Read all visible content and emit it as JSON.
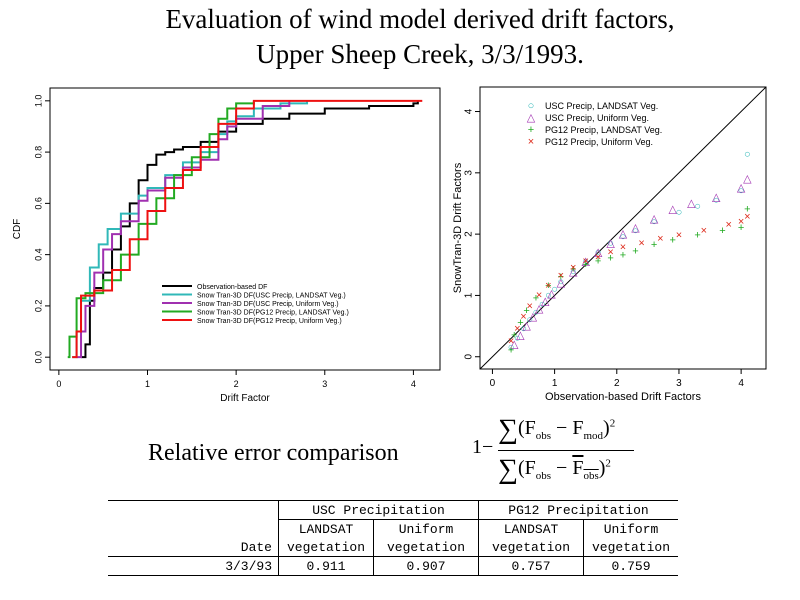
{
  "title": {
    "line1": "Evaluation of wind model derived drift factors,",
    "line2": "Upper Sheep Creek, 3/3/1993."
  },
  "chart_data": [
    {
      "type": "line",
      "xlabel": "Drift Factor",
      "ylabel": "CDF",
      "xlim": [
        -0.1,
        4.3
      ],
      "ylim": [
        -0.05,
        1.05
      ],
      "xticks": [
        "0",
        "1",
        "2",
        "3",
        "4"
      ],
      "yticks": [
        "0.0",
        "0.2",
        "0.4",
        "0.6",
        "0.8",
        "1.0"
      ],
      "legend_position": "bottom-right",
      "series": [
        {
          "name": "Observation-based DF",
          "color": "#000000",
          "points": [
            [
              0.25,
              0
            ],
            [
              0.3,
              0.05
            ],
            [
              0.35,
              0.22
            ],
            [
              0.4,
              0.27
            ],
            [
              0.5,
              0.33
            ],
            [
              0.6,
              0.42
            ],
            [
              0.7,
              0.51
            ],
            [
              0.8,
              0.6
            ],
            [
              0.9,
              0.69
            ],
            [
              1.0,
              0.75
            ],
            [
              1.1,
              0.79
            ],
            [
              1.2,
              0.8
            ],
            [
              1.3,
              0.81
            ],
            [
              1.4,
              0.82
            ],
            [
              1.5,
              0.82
            ],
            [
              1.6,
              0.84
            ],
            [
              1.8,
              0.88
            ],
            [
              2.0,
              0.91
            ],
            [
              2.3,
              0.93
            ],
            [
              2.6,
              0.95
            ],
            [
              3.0,
              0.97
            ],
            [
              3.5,
              0.98
            ],
            [
              4.0,
              0.99
            ],
            [
              4.05,
              1.0
            ]
          ]
        },
        {
          "name": "Snow Tran-3D DF(USC Precip, LANDSAT Veg.)",
          "color": "#30b8b8",
          "points": [
            [
              0.15,
              0
            ],
            [
              0.2,
              0.1
            ],
            [
              0.25,
              0.22
            ],
            [
              0.35,
              0.35
            ],
            [
              0.45,
              0.44
            ],
            [
              0.55,
              0.5
            ],
            [
              0.7,
              0.56
            ],
            [
              0.9,
              0.63
            ],
            [
              1.0,
              0.66
            ],
            [
              1.2,
              0.71
            ],
            [
              1.4,
              0.76
            ],
            [
              1.6,
              0.8
            ],
            [
              1.8,
              0.87
            ],
            [
              1.9,
              0.92
            ],
            [
              2.0,
              0.94
            ],
            [
              2.2,
              0.97
            ],
            [
              2.5,
              0.99
            ],
            [
              2.8,
              1.0
            ]
          ]
        },
        {
          "name": "Snow Tran-3D DF(USC Precip, Uniform Veg.)",
          "color": "#a030b0",
          "points": [
            [
              0.2,
              0
            ],
            [
              0.25,
              0.1
            ],
            [
              0.3,
              0.2
            ],
            [
              0.4,
              0.33
            ],
            [
              0.5,
              0.42
            ],
            [
              0.6,
              0.48
            ],
            [
              0.7,
              0.53
            ],
            [
              0.9,
              0.61
            ],
            [
              1.0,
              0.65
            ],
            [
              1.2,
              0.7
            ],
            [
              1.4,
              0.74
            ],
            [
              1.6,
              0.77
            ],
            [
              1.8,
              0.85
            ],
            [
              1.9,
              0.9
            ],
            [
              2.0,
              0.93
            ],
            [
              2.3,
              0.98
            ],
            [
              2.6,
              1.0
            ]
          ]
        },
        {
          "name": "Snow Tran-3D DF(PG12 Precip, LANDSAT Veg.)",
          "color": "#22aa22",
          "points": [
            [
              0.1,
              0
            ],
            [
              0.12,
              0.08
            ],
            [
              0.2,
              0.23
            ],
            [
              0.3,
              0.25
            ],
            [
              0.5,
              0.3
            ],
            [
              0.7,
              0.4
            ],
            [
              0.9,
              0.52
            ],
            [
              1.1,
              0.62
            ],
            [
              1.3,
              0.71
            ],
            [
              1.5,
              0.78
            ],
            [
              1.7,
              0.87
            ],
            [
              1.8,
              0.93
            ],
            [
              1.9,
              0.97
            ],
            [
              2.0,
              0.99
            ],
            [
              2.2,
              1.0
            ]
          ]
        },
        {
          "name": "Snow Tran-3D DF(PG12 Precip, Uniform Veg.)",
          "color": "#ee1111",
          "points": [
            [
              0.15,
              0
            ],
            [
              0.2,
              0.1
            ],
            [
              0.25,
              0.24
            ],
            [
              0.4,
              0.26
            ],
            [
              0.6,
              0.34
            ],
            [
              0.8,
              0.46
            ],
            [
              1.0,
              0.57
            ],
            [
              1.2,
              0.66
            ],
            [
              1.4,
              0.73
            ],
            [
              1.6,
              0.82
            ],
            [
              1.8,
              0.91
            ],
            [
              2.0,
              0.97
            ],
            [
              2.2,
              1.0
            ],
            [
              4.1,
              1.0
            ]
          ]
        }
      ]
    },
    {
      "type": "scatter",
      "xlabel": "Observation-based Drift Factors",
      "ylabel": "SnowTran-3D Drift Factors",
      "xlim": [
        -0.2,
        4.4
      ],
      "ylim": [
        -0.2,
        4.4
      ],
      "xticks": [
        "0",
        "1",
        "2",
        "3",
        "4"
      ],
      "yticks": [
        "0",
        "1",
        "2",
        "3",
        "4"
      ],
      "reference_line": "1:1",
      "legend_position": "top-left",
      "series": [
        {
          "name": "USC Precip, LANDSAT Veg.",
          "marker": "o",
          "marker_symbol": "○",
          "color": "#30b8b8",
          "points": [
            [
              0.3,
              0.15
            ],
            [
              0.4,
              0.3
            ],
            [
              0.5,
              0.45
            ],
            [
              0.6,
              0.6
            ],
            [
              0.7,
              0.72
            ],
            [
              0.8,
              0.85
            ],
            [
              0.9,
              1.0
            ],
            [
              1.0,
              1.1
            ],
            [
              1.1,
              1.22
            ],
            [
              1.3,
              1.38
            ],
            [
              1.5,
              1.55
            ],
            [
              1.7,
              1.7
            ],
            [
              1.9,
              1.85
            ],
            [
              2.1,
              1.95
            ],
            [
              2.3,
              2.05
            ],
            [
              2.6,
              2.2
            ],
            [
              3.0,
              2.35
            ],
            [
              3.3,
              2.45
            ],
            [
              3.6,
              2.55
            ],
            [
              4.0,
              2.7
            ],
            [
              4.1,
              3.3
            ]
          ]
        },
        {
          "name": "USC Precip, Uniform Veg.",
          "marker": "^",
          "marker_symbol": "△",
          "color": "#a030b0",
          "points": [
            [
              0.35,
              0.2
            ],
            [
              0.45,
              0.35
            ],
            [
              0.55,
              0.5
            ],
            [
              0.65,
              0.65
            ],
            [
              0.75,
              0.78
            ],
            [
              0.85,
              0.9
            ],
            [
              0.95,
              1.02
            ],
            [
              1.1,
              1.2
            ],
            [
              1.3,
              1.38
            ],
            [
              1.5,
              1.55
            ],
            [
              1.7,
              1.7
            ],
            [
              1.9,
              1.85
            ],
            [
              2.1,
              2.0
            ],
            [
              2.3,
              2.1
            ],
            [
              2.6,
              2.25
            ],
            [
              2.9,
              2.4
            ],
            [
              3.2,
              2.5
            ],
            [
              3.6,
              2.6
            ],
            [
              4.0,
              2.75
            ],
            [
              4.1,
              2.9
            ]
          ]
        },
        {
          "name": "PG12 Precip, LANDSAT Veg.",
          "marker": "+",
          "marker_symbol": "+",
          "color": "#22aa22",
          "points": [
            [
              0.3,
              0.1
            ],
            [
              0.35,
              0.35
            ],
            [
              0.45,
              0.55
            ],
            [
              0.55,
              0.75
            ],
            [
              0.7,
              0.95
            ],
            [
              0.9,
              1.15
            ],
            [
              1.1,
              1.3
            ],
            [
              1.3,
              1.42
            ],
            [
              1.5,
              1.5
            ],
            [
              1.7,
              1.55
            ],
            [
              1.9,
              1.6
            ],
            [
              2.1,
              1.65
            ],
            [
              2.3,
              1.72
            ],
            [
              2.6,
              1.82
            ],
            [
              2.9,
              1.9
            ],
            [
              3.3,
              1.98
            ],
            [
              3.7,
              2.05
            ],
            [
              4.0,
              2.1
            ],
            [
              4.1,
              2.4
            ]
          ]
        },
        {
          "name": "PG12 Precip, Uniform Veg.",
          "marker": "x",
          "marker_symbol": "×",
          "color": "#dd2a1a",
          "points": [
            [
              0.3,
              0.25
            ],
            [
              0.4,
              0.45
            ],
            [
              0.5,
              0.65
            ],
            [
              0.6,
              0.82
            ],
            [
              0.75,
              1.0
            ],
            [
              0.9,
              1.15
            ],
            [
              1.1,
              1.32
            ],
            [
              1.3,
              1.45
            ],
            [
              1.5,
              1.55
            ],
            [
              1.7,
              1.62
            ],
            [
              1.9,
              1.7
            ],
            [
              2.1,
              1.78
            ],
            [
              2.4,
              1.85
            ],
            [
              2.7,
              1.92
            ],
            [
              3.0,
              1.98
            ],
            [
              3.4,
              2.05
            ],
            [
              3.8,
              2.15
            ],
            [
              4.0,
              2.2
            ],
            [
              4.1,
              2.28
            ]
          ]
        }
      ]
    }
  ],
  "relative_error": {
    "label": "Relative error comparison",
    "formula": {
      "one": "1",
      "minus": "−",
      "sum": "∑",
      "lparen": "(",
      "rparen": ")",
      "F": "F",
      "obs": "obs",
      "mod": "mod",
      "sq": "2"
    }
  },
  "table": {
    "group_headers": [
      "USC Precipitation",
      "PG12 Precipitation"
    ],
    "sub_line1": [
      "LANDSAT",
      "Uniform",
      "LANDSAT",
      "Uniform"
    ],
    "sub_line2": [
      "vegetation",
      "vegetation",
      "vegetation",
      "vegetation"
    ],
    "date_header": "Date",
    "row": {
      "date": "3/3/93",
      "values": [
        "0.911",
        "0.907",
        "0.757",
        "0.759"
      ]
    }
  }
}
